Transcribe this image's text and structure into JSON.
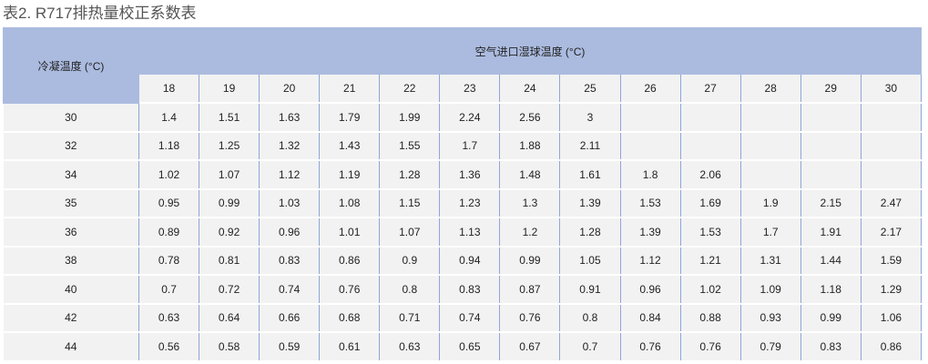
{
  "title": "表2. R717排热量校正系数表",
  "table": {
    "row_header": "冷凝温度 (°C)",
    "col_group_header": "空气进口湿球温度 (°C)",
    "columns": [
      "18",
      "19",
      "20",
      "21",
      "22",
      "23",
      "24",
      "25",
      "26",
      "27",
      "28",
      "29",
      "30"
    ],
    "rows": [
      {
        "label": "30",
        "values": [
          "1.4",
          "1.51",
          "1.63",
          "1.79",
          "1.99",
          "2.24",
          "2.56",
          "3",
          "",
          "",
          "",
          "",
          ""
        ]
      },
      {
        "label": "32",
        "values": [
          "1.18",
          "1.25",
          "1.32",
          "1.43",
          "1.55",
          "1.7",
          "1.88",
          "2.11",
          "",
          "",
          "",
          "",
          ""
        ]
      },
      {
        "label": "34",
        "values": [
          "1.02",
          "1.07",
          "1.12",
          "1.19",
          "1.28",
          "1.36",
          "1.48",
          "1.61",
          "1.8",
          "2.06",
          "",
          "",
          ""
        ]
      },
      {
        "label": "35",
        "values": [
          "0.95",
          "0.99",
          "1.03",
          "1.08",
          "1.15",
          "1.23",
          "1.3",
          "1.39",
          "1.53",
          "1.69",
          "1.9",
          "2.15",
          "2.47"
        ]
      },
      {
        "label": "36",
        "values": [
          "0.89",
          "0.92",
          "0.96",
          "1.01",
          "1.07",
          "1.13",
          "1.2",
          "1.28",
          "1.39",
          "1.53",
          "1.7",
          "1.91",
          "2.17"
        ]
      },
      {
        "label": "38",
        "values": [
          "0.78",
          "0.81",
          "0.83",
          "0.86",
          "0.9",
          "0.94",
          "0.99",
          "1.05",
          "1.12",
          "1.21",
          "1.31",
          "1.44",
          "1.59"
        ]
      },
      {
        "label": "40",
        "values": [
          "0.7",
          "0.72",
          "0.74",
          "0.76",
          "0.8",
          "0.83",
          "0.87",
          "0.91",
          "0.96",
          "1.02",
          "1.09",
          "1.18",
          "1.29"
        ]
      },
      {
        "label": "42",
        "values": [
          "0.63",
          "0.64",
          "0.66",
          "0.68",
          "0.71",
          "0.74",
          "0.76",
          "0.8",
          "0.84",
          "0.88",
          "0.93",
          "0.99",
          "1.06"
        ]
      },
      {
        "label": "44",
        "values": [
          "0.56",
          "0.58",
          "0.59",
          "0.61",
          "0.63",
          "0.65",
          "0.67",
          "0.7",
          "0.76",
          "0.76",
          "0.79",
          "0.83",
          "0.86"
        ]
      }
    ]
  },
  "colors": {
    "header_bg": "#abbbdf",
    "cell_bg": "#f2f2f2",
    "grid": "#8ea6d8"
  }
}
